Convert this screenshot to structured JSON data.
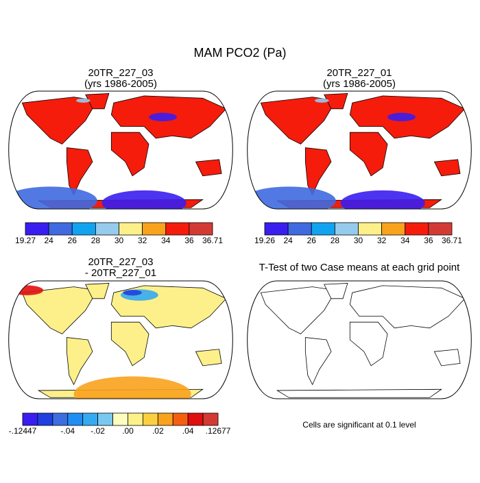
{
  "title": "MAM PCO2 (Pa)",
  "panels": [
    {
      "title": "20TR_227_03",
      "subtitle": "(yrs 1986-2005)",
      "colorbar": {
        "colors": [
          "#3a1ef0",
          "#3f6ae0",
          "#12a3f0",
          "#95cbec",
          "#fdf08a",
          "#f9a21e",
          "#f51c0c",
          "#d43a34"
        ],
        "labels": [
          "19.27",
          "24",
          "26",
          "28",
          "30",
          "32",
          "34",
          "36",
          "36.71"
        ]
      }
    },
    {
      "title": "20TR_227_01",
      "subtitle": "(yrs 1986-2005)",
      "colorbar": {
        "colors": [
          "#3a1ef0",
          "#3f6ae0",
          "#12a3f0",
          "#95cbec",
          "#fdf08a",
          "#f9a21e",
          "#f51c0c",
          "#d43a34"
        ],
        "labels": [
          "19.26",
          "24",
          "26",
          "28",
          "30",
          "32",
          "34",
          "36",
          "36.71"
        ]
      }
    },
    {
      "title": "20TR_227_03",
      "subtitle": "- 20TR_227_01",
      "colorbar": {
        "colors": [
          "#3a1ef0",
          "#2040e0",
          "#3c6ee0",
          "#1e8ef5",
          "#34aaf0",
          "#7ac8f0",
          "#fffcc0",
          "#fdf08a",
          "#fbd040",
          "#f9a21e",
          "#f56010",
          "#e01010",
          "#d43a34"
        ],
        "labels": [
          "-.12447",
          "-.04",
          "-.02",
          ".00",
          ".02",
          ".04",
          ".12677"
        ]
      }
    },
    {
      "title": "T-Test of two Case means at each grid point",
      "note": "Cells are significant at 0.1 level"
    }
  ]
}
